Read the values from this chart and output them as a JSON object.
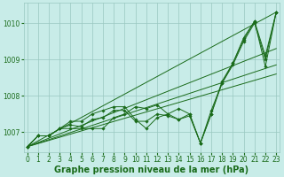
{
  "background_color": "#c8ece8",
  "plot_bg_color": "#c8ece8",
  "grid_color": "#9ac8c0",
  "line_color": "#1a6b1a",
  "marker_color": "#1a6b1a",
  "x_values": [
    0,
    1,
    2,
    3,
    4,
    5,
    6,
    7,
    8,
    9,
    10,
    11,
    12,
    13,
    14,
    15,
    16,
    17,
    18,
    19,
    20,
    21,
    22,
    23
  ],
  "straight_lines": [
    [
      [
        0,
        23
      ],
      [
        1006.6,
        1010.3
      ]
    ],
    [
      [
        0,
        23
      ],
      [
        1006.6,
        1009.3
      ]
    ],
    [
      [
        0,
        23
      ],
      [
        1006.6,
        1008.85
      ]
    ],
    [
      [
        0,
        23
      ],
      [
        1006.6,
        1008.6
      ]
    ]
  ],
  "zigzag_series": [
    [
      1006.6,
      1006.9,
      1006.9,
      1007.1,
      1007.1,
      1007.1,
      1007.1,
      1007.1,
      1007.4,
      1007.5,
      1007.7,
      1007.65,
      1007.75,
      1007.5,
      1007.65,
      1007.5,
      1006.7,
      1007.5,
      1008.35,
      1008.9,
      1009.55,
      1010.05,
      1008.8,
      1010.3
    ],
    [
      1006.6,
      1006.9,
      1006.9,
      1007.1,
      1007.3,
      1007.3,
      1007.5,
      1007.6,
      1007.7,
      1007.7,
      1007.35,
      1007.1,
      1007.4,
      1007.5,
      1007.35,
      1007.5,
      1006.7,
      1007.5,
      1008.4,
      1008.9,
      1009.6,
      1010.05,
      1009.1,
      1010.3
    ],
    [
      1006.6,
      1006.9,
      1006.9,
      1007.1,
      1007.2,
      1007.15,
      1007.35,
      1007.4,
      1007.6,
      1007.6,
      1007.3,
      1007.3,
      1007.5,
      1007.45,
      1007.35,
      1007.45,
      1006.7,
      1007.6,
      1008.35,
      1008.85,
      1009.5,
      1010.0,
      1009.0,
      1010.3
    ]
  ],
  "xlabel": "Graphe pression niveau de la mer (hPa)",
  "ylim": [
    1006.45,
    1010.55
  ],
  "yticks": [
    1007,
    1008,
    1009,
    1010
  ],
  "xticks": [
    0,
    1,
    2,
    3,
    4,
    5,
    6,
    7,
    8,
    9,
    10,
    11,
    12,
    13,
    14,
    15,
    16,
    17,
    18,
    19,
    20,
    21,
    22,
    23
  ],
  "xlim": [
    -0.3,
    23.3
  ],
  "xlabel_fontsize": 7,
  "tick_fontsize": 5.5
}
